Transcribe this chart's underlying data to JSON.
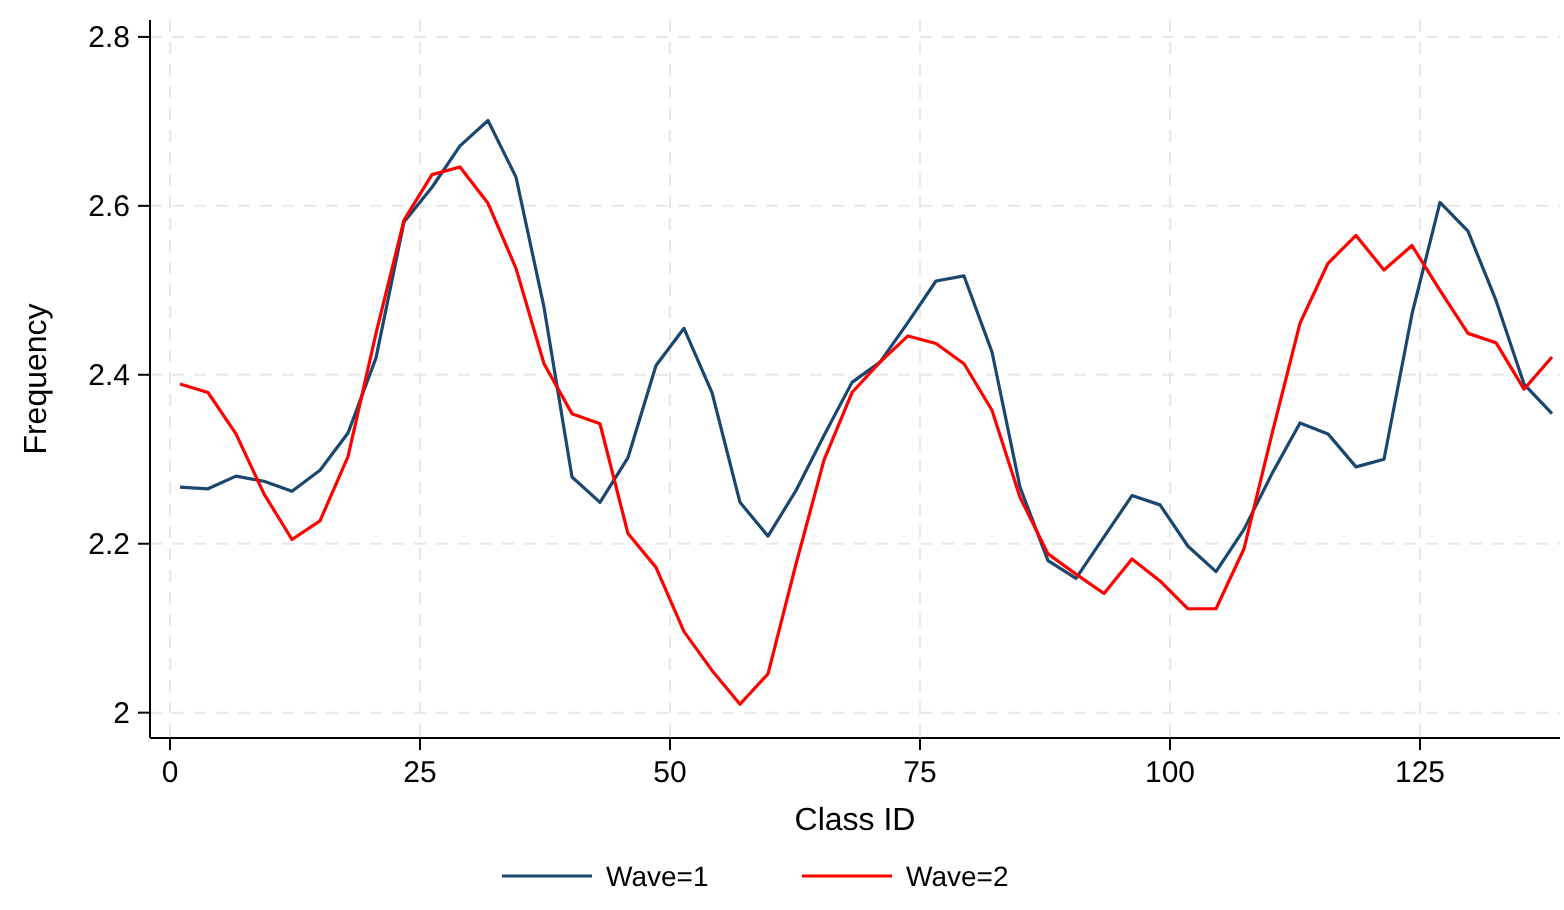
{
  "chart_data": {
    "type": "line",
    "xlabel": "Class ID",
    "ylabel": "Frequency",
    "x": [
      1,
      3.8,
      6.6,
      9.4,
      12.2,
      15,
      17.8,
      20.6,
      23.4,
      26.2,
      29,
      31.8,
      34.6,
      37.4,
      40.2,
      43,
      45.8,
      48.6,
      51.4,
      54.2,
      57,
      59.8,
      62.6,
      65.4,
      68.2,
      71,
      73.8,
      76.6,
      79.4,
      82.2,
      85,
      87.8,
      90.6,
      93.4,
      96.2,
      99,
      101.8,
      104.6,
      107.4,
      110.2,
      113,
      115.8,
      118.6,
      121.4,
      124.2,
      127,
      129.8,
      132.6,
      135.4,
      138.2
    ],
    "series": [
      {
        "name": "Wave=1",
        "color": "#1a476f",
        "values": [
          2.267,
          2.265,
          2.28,
          2.274,
          2.262,
          2.287,
          2.331,
          2.42,
          2.581,
          2.622,
          2.671,
          2.701,
          2.634,
          2.48,
          2.279,
          2.249,
          2.302,
          2.411,
          2.455,
          2.379,
          2.249,
          2.209,
          2.263,
          2.328,
          2.391,
          2.415,
          2.462,
          2.511,
          2.517,
          2.427,
          2.267,
          2.18,
          2.159,
          2.208,
          2.257,
          2.246,
          2.197,
          2.167,
          2.217,
          2.283,
          2.343,
          2.33,
          2.291,
          2.3,
          2.472,
          2.604,
          2.57,
          2.488,
          2.389,
          2.354
        ]
      },
      {
        "name": "Wave=2",
        "color": "#ff0000",
        "values": [
          2.389,
          2.379,
          2.33,
          2.259,
          2.205,
          2.227,
          2.303,
          2.449,
          2.583,
          2.637,
          2.646,
          2.603,
          2.526,
          2.413,
          2.354,
          2.342,
          2.212,
          2.172,
          2.096,
          2.05,
          2.01,
          2.046,
          2.176,
          2.299,
          2.379,
          2.415,
          2.446,
          2.437,
          2.413,
          2.358,
          2.255,
          2.188,
          2.164,
          2.141,
          2.182,
          2.156,
          2.123,
          2.123,
          2.194,
          2.33,
          2.461,
          2.532,
          2.565,
          2.524,
          2.553,
          2.5,
          2.449,
          2.438,
          2.383,
          2.421
        ]
      }
    ],
    "xlim": [
      -2,
      139
    ],
    "xticks": [
      0,
      25,
      50,
      75,
      100,
      125
    ],
    "ylim": [
      1.97,
      2.82
    ],
    "yticks": [
      2,
      {
        "value": 2.2,
        "label": "2.2"
      },
      {
        "value": 2.4,
        "label": "2.4"
      },
      {
        "value": 2.6,
        "label": "2.6"
      },
      {
        "value": 2.8,
        "label": "2.8"
      }
    ],
    "grid": true,
    "legend": "bottom",
    "marker": "none",
    "line_style": "solid"
  }
}
